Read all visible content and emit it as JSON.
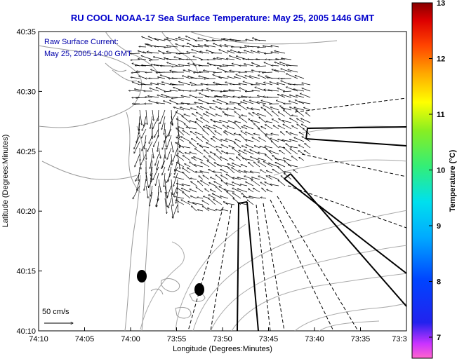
{
  "figure": {
    "title": "RU COOL  NOAA-17  Sea Surface Temperature:  May 25, 2005 1446 GMT",
    "annotation_line1": "Raw Surface Current:",
    "annotation_line2": "May 25, 2005 14:00 GMT",
    "scale_label": "50 cm/s"
  },
  "chart_data": {
    "type": "map-vector-field",
    "title": "RU COOL  NOAA-17  Sea Surface Temperature:  May 25, 2005 1446 GMT",
    "xlabel": "Longitude (Degrees:Minutes)",
    "ylabel": "Latitude (Degrees:Minutes)",
    "x_ticks": [
      "74:10",
      "74:05",
      "74:00",
      "73:55",
      "73:50",
      "73:45",
      "73:40",
      "73:35",
      "73:3"
    ],
    "y_ticks": [
      "40:35",
      "40:30",
      "40:25",
      "40:20",
      "40:15",
      "40:10"
    ],
    "x_range_minutes_west": [
      10,
      30
    ],
    "y_range_minutes_north": [
      10,
      35
    ],
    "colorbar": {
      "label": "Temperature (°C)",
      "min": 7,
      "max": 13,
      "ticks": [
        "13",
        "12",
        "11",
        "10",
        "9",
        "8",
        "7"
      ],
      "colormap": "jet"
    },
    "land_color": "#ffffff",
    "coastline_color": "#999999",
    "vector_color": "#000000"
  }
}
